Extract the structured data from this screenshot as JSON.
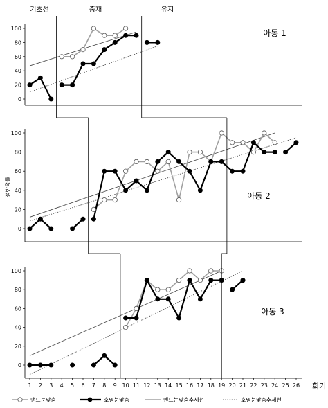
{
  "chart_data": {
    "type": "line",
    "phases": [
      "기초선",
      "중재",
      "유지"
    ],
    "ylabel": "정반응률",
    "xlabel": "회기",
    "x": [
      1,
      2,
      3,
      4,
      5,
      6,
      7,
      8,
      9,
      10,
      11,
      12,
      13,
      14,
      15,
      16,
      17,
      18,
      19,
      20,
      21,
      22,
      23,
      24,
      25,
      26
    ],
    "ylim": [
      0,
      100
    ],
    "yticks": [
      0,
      20,
      40,
      60,
      80,
      100
    ],
    "xlim": [
      1,
      26
    ],
    "legend_position": "bottom",
    "legend": [
      {
        "label": "맨드눈맞춤",
        "style": "open-marker-gray-line"
      },
      {
        "label": "호명눈맞춤",
        "style": "filled-marker-black-line"
      },
      {
        "label": "맨드눈맞춤추세선",
        "style": "solid-line"
      },
      {
        "label": "호명눈맞춤추세선",
        "style": "dotted-line"
      }
    ],
    "panels": [
      {
        "name": "아동 1",
        "phase_changes": [
          3.5,
          11.5
        ],
        "mand": [
          {
            "x": 4,
            "y": 60
          },
          {
            "x": 5,
            "y": 60
          },
          {
            "x": 6,
            "y": 70
          },
          {
            "x": 7,
            "y": 100
          },
          {
            "x": 8,
            "y": 90
          },
          {
            "x": 9,
            "y": 90
          },
          {
            "x": 10,
            "y": 100
          }
        ],
        "call": [
          [
            {
              "x": 1,
              "y": 20
            },
            {
              "x": 2,
              "y": 30
            },
            {
              "x": 3,
              "y": 0
            }
          ],
          [
            {
              "x": 4,
              "y": 20
            },
            {
              "x": 5,
              "y": 20
            },
            {
              "x": 6,
              "y": 50
            },
            {
              "x": 7,
              "y": 50
            },
            {
              "x": 8,
              "y": 70
            },
            {
              "x": 9,
              "y": 80
            },
            {
              "x": 10,
              "y": 90
            },
            {
              "x": 11,
              "y": 90
            }
          ],
          [
            {
              "x": 12,
              "y": 80
            },
            {
              "x": 13,
              "y": 80
            }
          ]
        ],
        "mand_trend": [
          [
            1,
            47
          ],
          [
            11,
            95
          ]
        ],
        "call_trend": [
          [
            1,
            10
          ],
          [
            13,
            75
          ]
        ]
      },
      {
        "name": "아동 2",
        "phase_changes": [
          6.5,
          19.5
        ],
        "mand": [
          {
            "x": 7,
            "y": 20
          },
          {
            "x": 8,
            "y": 30
          },
          {
            "x": 9,
            "y": 30
          },
          {
            "x": 10,
            "y": 60
          },
          {
            "x": 11,
            "y": 70
          },
          {
            "x": 12,
            "y": 70
          },
          {
            "x": 13,
            "y": 60
          },
          {
            "x": 14,
            "y": 70
          },
          {
            "x": 15,
            "y": 30
          },
          {
            "x": 16,
            "y": 80
          },
          {
            "x": 17,
            "y": 80
          },
          {
            "x": 18,
            "y": 70
          },
          {
            "x": 19,
            "y": 100
          },
          {
            "x": 20,
            "y": 90
          },
          {
            "x": 21,
            "y": 90
          },
          {
            "x": 22,
            "y": 80
          },
          {
            "x": 23,
            "y": 100
          },
          {
            "x": 24,
            "y": 90
          }
        ],
        "call": [
          [
            {
              "x": 1,
              "y": 0
            },
            {
              "x": 2,
              "y": 10
            },
            {
              "x": 3,
              "y": 0
            }
          ],
          [
            {
              "x": 5,
              "y": 0
            },
            {
              "x": 6,
              "y": 10
            }
          ],
          [
            {
              "x": 7,
              "y": 10
            },
            {
              "x": 8,
              "y": 60
            },
            {
              "x": 9,
              "y": 60
            },
            {
              "x": 10,
              "y": 40
            },
            {
              "x": 11,
              "y": 50
            },
            {
              "x": 12,
              "y": 40
            },
            {
              "x": 13,
              "y": 70
            },
            {
              "x": 14,
              "y": 80
            },
            {
              "x": 15,
              "y": 70
            },
            {
              "x": 16,
              "y": 60
            },
            {
              "x": 17,
              "y": 40
            },
            {
              "x": 18,
              "y": 70
            },
            {
              "x": 19,
              "y": 70
            },
            {
              "x": 20,
              "y": 60
            },
            {
              "x": 21,
              "y": 60
            },
            {
              "x": 22,
              "y": 90
            },
            {
              "x": 23,
              "y": 80
            },
            {
              "x": 24,
              "y": 80
            }
          ],
          [
            {
              "x": 25,
              "y": 80
            },
            {
              "x": 26,
              "y": 90
            }
          ]
        ],
        "mand_trend": [
          [
            1,
            12
          ],
          [
            24,
            100
          ]
        ],
        "call_trend": [
          [
            1,
            8
          ],
          [
            26,
            95
          ]
        ]
      },
      {
        "name": "아동 3",
        "phase_changes": [
          9.5,
          19
        ],
        "mand": [
          {
            "x": 10,
            "y": 40
          },
          {
            "x": 11,
            "y": 60
          },
          {
            "x": 12,
            "y": 90
          },
          {
            "x": 13,
            "y": 80
          },
          {
            "x": 14,
            "y": 80
          },
          {
            "x": 15,
            "y": 90
          },
          {
            "x": 16,
            "y": 100
          },
          {
            "x": 17,
            "y": 90
          },
          {
            "x": 18,
            "y": 100
          },
          {
            "x": 19,
            "y": 100
          }
        ],
        "call": [
          [
            {
              "x": 1,
              "y": 0
            },
            {
              "x": 2,
              "y": 0
            },
            {
              "x": 3,
              "y": 0
            }
          ],
          [
            {
              "x": 5,
              "y": 0
            }
          ],
          [
            {
              "x": 7,
              "y": 0
            },
            {
              "x": 8,
              "y": 10
            },
            {
              "x": 9,
              "y": 0
            }
          ],
          [
            {
              "x": 10,
              "y": 50
            },
            {
              "x": 11,
              "y": 50
            },
            {
              "x": 12,
              "y": 90
            },
            {
              "x": 13,
              "y": 70
            },
            {
              "x": 14,
              "y": 70
            },
            {
              "x": 15,
              "y": 50
            },
            {
              "x": 16,
              "y": 90
            },
            {
              "x": 17,
              "y": 70
            },
            {
              "x": 18,
              "y": 90
            },
            {
              "x": 19,
              "y": 90
            }
          ],
          [
            {
              "x": 20,
              "y": 80
            },
            {
              "x": 21,
              "y": 90
            }
          ]
        ],
        "mand_trend": [
          [
            1,
            10
          ],
          [
            19,
            100
          ]
        ],
        "call_trend": [
          [
            1,
            -10
          ],
          [
            21,
            100
          ]
        ]
      }
    ]
  }
}
